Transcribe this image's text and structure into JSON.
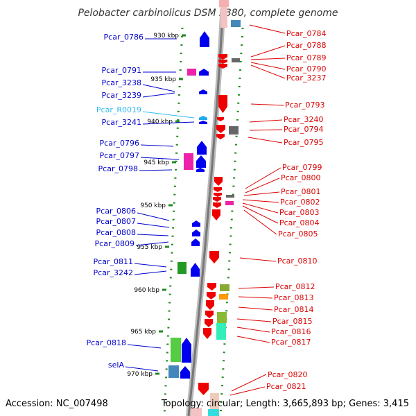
{
  "title": "Pelobacter carbinolicus DSM 2380, complete genome",
  "footer": {
    "accession": "Accession: NC_007498",
    "topology": "Topology: circular; Length: 3,665,893 bp; Genes: 3,415"
  },
  "colors": {
    "forward_gene": "#0000ee",
    "reverse_gene": "#ee0000",
    "left_label": "#0000cc",
    "right_label": "#dd0000",
    "rna_label": "#33bbee",
    "tick": "#228822",
    "backbone": "#888888"
  },
  "kbp_ticks": [
    "930 kbp",
    "935 kbp",
    "940 kbp",
    "945 kbp",
    "950 kbp",
    "955 kbp",
    "960 kbp",
    "965 kbp",
    "970 kbp"
  ],
  "left_labels": [
    "Pcar_0786",
    "Pcar_0791",
    "Pcar_3238",
    "Pcar_3239",
    "Pcar_R0019",
    "Pcar_3241",
    "Pcar_0796",
    "Pcar_0797",
    "Pcar_0798",
    "Pcar_0806",
    "Pcar_0807",
    "Pcar_0808",
    "Pcar_0809",
    "Pcar_0811",
    "Pcar_3242",
    "Pcar_0818",
    "selA"
  ],
  "right_labels": [
    "Pcar_0784",
    "Pcar_0788",
    "Pcar_0789",
    "Pcar_0790",
    "Pcar_3237",
    "Pcar_0793",
    "Pcar_3240",
    "Pcar_0794",
    "Pcar_0795",
    "Pcar_0799",
    "Pcar_0800",
    "Pcar_0801",
    "Pcar_0802",
    "Pcar_0803",
    "Pcar_0804",
    "Pcar_0805",
    "Pcar_0810",
    "Pcar_0812",
    "Pcar_0813",
    "Pcar_0814",
    "Pcar_0815",
    "Pcar_0816",
    "Pcar_0817",
    "Pcar_0820",
    "Pcar_0821"
  ]
}
